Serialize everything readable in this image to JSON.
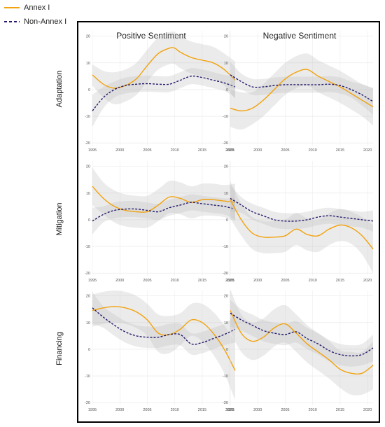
{
  "legend": {
    "items": [
      {
        "label": "Annex I",
        "color": "#f2a20c",
        "dash": "solid"
      },
      {
        "label": "Non-Annex I",
        "color": "#231a6b",
        "dash": "dashed"
      }
    ]
  },
  "columns": [
    "Positive Sentiment",
    "Negative Sentiment"
  ],
  "chart_data": {
    "type": "line",
    "x_ticks": [
      1995,
      2000,
      2005,
      2010,
      2015,
      2020
    ],
    "y_ticks": [
      20,
      10,
      0,
      -10,
      -20
    ],
    "xlim": [
      1995,
      2021
    ],
    "ylim": [
      -21,
      22
    ],
    "grid": true,
    "legend_placement": "top-left",
    "rows": [
      "Adaptation",
      "Mitigation",
      "Financing"
    ],
    "panels": [
      {
        "row": "Adaptation",
        "column": "Positive Sentiment",
        "series": [
          {
            "name": "Annex I",
            "x": [
              1995,
              1997,
              1999,
              2001,
              2003,
              2005,
              2007,
              2009,
              2010,
              2011,
              2013,
              2015,
              2017,
              2019,
              2021
            ],
            "y": [
              5.5,
              2,
              0.5,
              1.5,
              4,
              9,
              13.5,
              15.5,
              15.5,
              14,
              12,
              11,
              10,
              7.5,
              3.5
            ],
            "band": [
              4,
              5,
              6,
              6,
              6,
              6,
              6,
              6,
              6,
              6,
              6,
              6,
              6,
              6,
              7
            ]
          },
          {
            "name": "Non-Annex I",
            "x": [
              1995,
              1997,
              1999,
              2001,
              2003,
              2005,
              2007,
              2009,
              2011,
              2013,
              2015,
              2017,
              2019,
              2021
            ],
            "y": [
              -8,
              -3,
              0,
              1.5,
              2,
              2.2,
              2,
              2,
              3.5,
              5,
              4.5,
              3.5,
              2.5,
              1
            ],
            "band": [
              6,
              4,
              3,
              3,
              3,
              3,
              3,
              3,
              3,
              3,
              3,
              3,
              3,
              4
            ]
          }
        ]
      },
      {
        "row": "Adaptation",
        "column": "Negative Sentiment",
        "series": [
          {
            "name": "Annex I",
            "x": [
              1995,
              1997,
              1999,
              2001,
              2003,
              2005,
              2007,
              2009,
              2011,
              2013,
              2015,
              2017,
              2019,
              2021
            ],
            "y": [
              -7,
              -8,
              -7,
              -4,
              0,
              4,
              6.5,
              7.5,
              5,
              3,
              1,
              -1.5,
              -4,
              -6.5
            ],
            "band": [
              7,
              7,
              6,
              6,
              6,
              6,
              6,
              6,
              6,
              6,
              6,
              6,
              6,
              7
            ]
          },
          {
            "name": "Non-Annex I",
            "x": [
              1995,
              1997,
              1999,
              2001,
              2003,
              2005,
              2007,
              2009,
              2011,
              2013,
              2015,
              2017,
              2019,
              2021
            ],
            "y": [
              5.5,
              3,
              1,
              1,
              1.5,
              1.8,
              1.8,
              1.8,
              1.8,
              2,
              1.5,
              0,
              -2,
              -4.5
            ],
            "band": [
              5,
              3,
              3,
              3,
              3,
              3,
              3,
              3,
              3,
              3,
              3,
              3,
              4,
              5
            ]
          }
        ]
      },
      {
        "row": "Mitigation",
        "column": "Positive Sentiment",
        "series": [
          {
            "name": "Annex I",
            "x": [
              1995,
              1997,
              1999,
              2001,
              2003,
              2005,
              2007,
              2009,
              2011,
              2013,
              2015,
              2017,
              2019,
              2021
            ],
            "y": [
              12.5,
              8,
              5,
              3.5,
              3,
              3,
              5.5,
              8.5,
              8,
              6.5,
              7.5,
              7.5,
              7,
              6.5
            ],
            "band": [
              7,
              6,
              6,
              6,
              6,
              6,
              6,
              6,
              6,
              6,
              6,
              6,
              6,
              7
            ]
          },
          {
            "name": "Non-Annex I",
            "x": [
              1995,
              1997,
              1999,
              2001,
              2003,
              2005,
              2007,
              2009,
              2011,
              2013,
              2015,
              2017,
              2019,
              2021
            ],
            "y": [
              -0.5,
              2,
              3.5,
              4,
              4,
              3.5,
              3,
              4.5,
              5.5,
              6.5,
              6,
              5.5,
              5,
              4
            ],
            "band": [
              5,
              3,
              3,
              3,
              3,
              3,
              3,
              3,
              3,
              3,
              3,
              3,
              3,
              4
            ]
          }
        ]
      },
      {
        "row": "Mitigation",
        "column": "Negative Sentiment",
        "series": [
          {
            "name": "Annex I",
            "x": [
              1995,
              1997,
              1999,
              2001,
              2003,
              2005,
              2007,
              2009,
              2011,
              2013,
              2015,
              2017,
              2019,
              2021
            ],
            "y": [
              7.5,
              0,
              -5,
              -6.5,
              -6.5,
              -6,
              -3.5,
              -5.5,
              -6,
              -3.5,
              -2,
              -3,
              -6,
              -11
            ],
            "band": [
              7,
              6,
              6,
              6,
              6,
              6,
              6,
              6,
              6,
              6,
              6,
              6,
              7,
              9
            ]
          },
          {
            "name": "Non-Annex I",
            "x": [
              1995,
              1997,
              1999,
              2001,
              2003,
              2005,
              2007,
              2009,
              2011,
              2013,
              2015,
              2017,
              2019,
              2021
            ],
            "y": [
              8,
              5.5,
              3,
              1.5,
              0,
              -0.5,
              -0.5,
              0,
              1,
              1.5,
              1,
              0.5,
              0,
              -0.5
            ],
            "band": [
              5,
              3,
              3,
              3,
              3,
              3,
              3,
              3,
              3,
              3,
              3,
              3,
              3,
              4
            ]
          }
        ]
      },
      {
        "row": "Financing",
        "column": "Positive Sentiment",
        "series": [
          {
            "name": "Annex I",
            "x": [
              1995,
              1997,
              1999,
              2001,
              2003,
              2005,
              2007,
              2009,
              2011,
              2013,
              2015,
              2017,
              2019,
              2021
            ],
            "y": [
              14.5,
              15.5,
              16,
              15.5,
              14,
              11,
              6,
              5.5,
              7.5,
              11,
              10,
              6,
              0,
              -8
            ],
            "band": [
              6,
              6,
              6,
              6,
              6,
              6,
              7,
              7,
              6,
              6,
              7,
              8,
              9,
              11
            ]
          },
          {
            "name": "Non-Annex I",
            "x": [
              1995,
              1997,
              1999,
              2001,
              2003,
              2005,
              2007,
              2009,
              2011,
              2013,
              2015,
              2017,
              2019,
              2021
            ],
            "y": [
              15.5,
              12,
              9,
              6.5,
              5,
              4.5,
              4.5,
              5.5,
              5.5,
              2,
              2.5,
              4,
              5.5,
              7.5
            ],
            "band": [
              6,
              4,
              4,
              4,
              4,
              4,
              4,
              4,
              4,
              4,
              4,
              4,
              4,
              5
            ]
          }
        ]
      },
      {
        "row": "Financing",
        "column": "Negative Sentiment",
        "series": [
          {
            "name": "Annex I",
            "x": [
              1995,
              1997,
              1999,
              2001,
              2003,
              2005,
              2007,
              2009,
              2011,
              2013,
              2015,
              2017,
              2019,
              2021
            ],
            "y": [
              14.5,
              6,
              3,
              4.5,
              8,
              9.5,
              6,
              2,
              -1,
              -4,
              -7.5,
              -9,
              -9,
              -6
            ],
            "band": [
              8,
              7,
              7,
              7,
              7,
              7,
              7,
              7,
              7,
              7,
              7,
              8,
              8,
              9
            ]
          },
          {
            "name": "Non-Annex I",
            "x": [
              1995,
              1997,
              1999,
              2001,
              2003,
              2005,
              2007,
              2009,
              2011,
              2013,
              2015,
              2017,
              2019,
              2021
            ],
            "y": [
              13.5,
              11,
              9,
              7,
              6,
              5.5,
              6.5,
              4,
              2,
              -0.5,
              -2,
              -2.5,
              -2,
              0.5
            ],
            "band": [
              5,
              4,
              4,
              4,
              4,
              4,
              4,
              4,
              4,
              4,
              4,
              4,
              4,
              5
            ]
          }
        ]
      }
    ]
  }
}
